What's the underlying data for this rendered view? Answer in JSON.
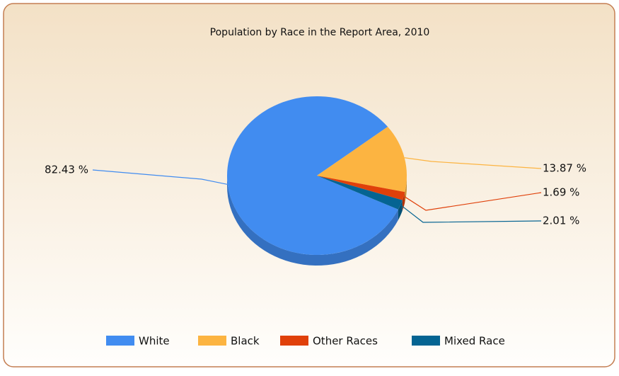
{
  "chart_data": {
    "type": "pie",
    "title": "Population by Race in the Report Area, 2010",
    "categories": [
      "White",
      "Black",
      "Other Races",
      "Mixed Race"
    ],
    "values": [
      82.43,
      13.87,
      1.69,
      2.01
    ],
    "value_labels": [
      "82.43 %",
      "13.87 %",
      "1.69 %",
      "2.01 %"
    ],
    "colors": [
      "#418cf0",
      "#fcb441",
      "#e0400a",
      "#056492"
    ],
    "legend": "bottom"
  }
}
